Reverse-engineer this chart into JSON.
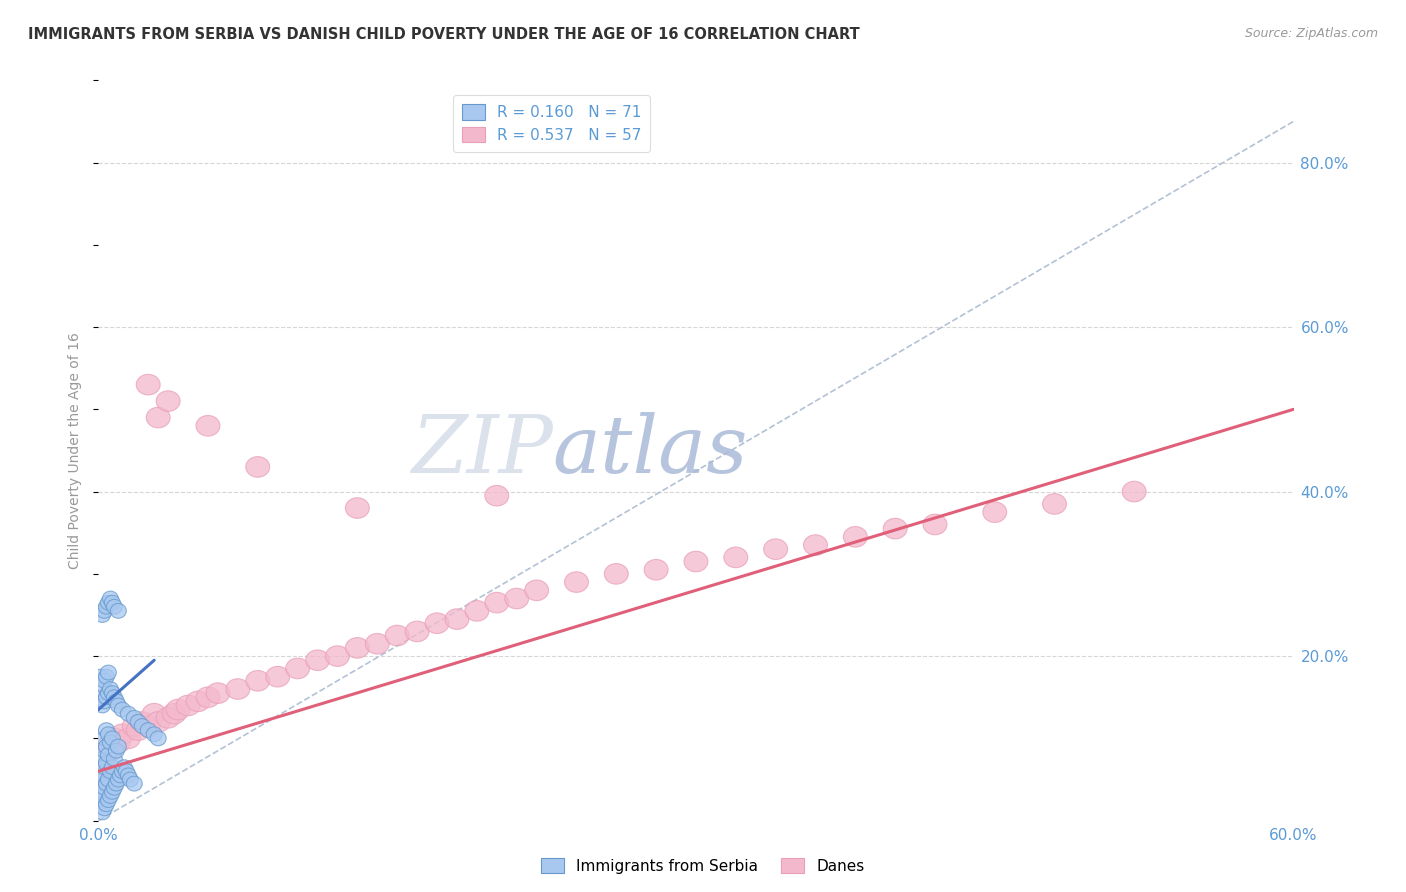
{
  "title": "IMMIGRANTS FROM SERBIA VS DANISH CHILD POVERTY UNDER THE AGE OF 16 CORRELATION CHART",
  "source_text": "Source: ZipAtlas.com",
  "ylabel": "Child Poverty Under the Age of 16",
  "xlim": [
    0.0,
    0.6
  ],
  "ylim": [
    0.0,
    0.9
  ],
  "xticks": [
    0.0,
    0.1,
    0.2,
    0.3,
    0.4,
    0.5,
    0.6
  ],
  "yticks": [
    0.0,
    0.2,
    0.4,
    0.6,
    0.8
  ],
  "xtick_labels": [
    "0.0%",
    "",
    "",
    "",
    "",
    "",
    "60.0%"
  ],
  "ytick_labels": [
    "",
    "20.0%",
    "40.0%",
    "60.0%",
    "80.0%"
  ],
  "axis_color": "#5b9bd5",
  "legend_r1": "R = 0.160",
  "legend_n1": "N = 71",
  "legend_r2": "R = 0.537",
  "legend_n2": "N = 57",
  "serbia_color": "#a8c8f0",
  "danes_color": "#f4b8cc",
  "serbia_line_color": "#4472c4",
  "danes_line_color": "#e0607a",
  "serbia_scatter_x": [
    0.001,
    0.001,
    0.001,
    0.002,
    0.002,
    0.002,
    0.002,
    0.003,
    0.003,
    0.003,
    0.003,
    0.003,
    0.004,
    0.004,
    0.004,
    0.004,
    0.004,
    0.005,
    0.005,
    0.005,
    0.005,
    0.006,
    0.006,
    0.006,
    0.007,
    0.007,
    0.007,
    0.008,
    0.008,
    0.009,
    0.009,
    0.01,
    0.01,
    0.011,
    0.012,
    0.013,
    0.014,
    0.015,
    0.016,
    0.018,
    0.001,
    0.001,
    0.002,
    0.002,
    0.003,
    0.003,
    0.004,
    0.004,
    0.005,
    0.005,
    0.006,
    0.007,
    0.008,
    0.009,
    0.01,
    0.012,
    0.015,
    0.018,
    0.02,
    0.022,
    0.025,
    0.028,
    0.03,
    0.002,
    0.003,
    0.004,
    0.005,
    0.006,
    0.007,
    0.008,
    0.01
  ],
  "serbia_scatter_y": [
    0.02,
    0.035,
    0.05,
    0.01,
    0.03,
    0.055,
    0.075,
    0.015,
    0.04,
    0.065,
    0.085,
    0.1,
    0.02,
    0.045,
    0.07,
    0.09,
    0.11,
    0.025,
    0.05,
    0.08,
    0.105,
    0.03,
    0.06,
    0.095,
    0.035,
    0.065,
    0.1,
    0.04,
    0.075,
    0.045,
    0.085,
    0.05,
    0.09,
    0.055,
    0.06,
    0.065,
    0.06,
    0.055,
    0.05,
    0.045,
    0.15,
    0.175,
    0.14,
    0.165,
    0.145,
    0.17,
    0.15,
    0.175,
    0.155,
    0.18,
    0.16,
    0.155,
    0.15,
    0.145,
    0.14,
    0.135,
    0.13,
    0.125,
    0.12,
    0.115,
    0.11,
    0.105,
    0.1,
    0.25,
    0.255,
    0.26,
    0.265,
    0.27,
    0.265,
    0.26,
    0.255
  ],
  "danes_scatter_x": [
    0.002,
    0.003,
    0.005,
    0.006,
    0.008,
    0.01,
    0.012,
    0.015,
    0.018,
    0.02,
    0.022,
    0.025,
    0.028,
    0.03,
    0.035,
    0.038,
    0.04,
    0.045,
    0.05,
    0.055,
    0.06,
    0.07,
    0.08,
    0.09,
    0.1,
    0.11,
    0.12,
    0.13,
    0.14,
    0.15,
    0.16,
    0.17,
    0.18,
    0.19,
    0.2,
    0.21,
    0.22,
    0.24,
    0.26,
    0.28,
    0.3,
    0.32,
    0.34,
    0.36,
    0.38,
    0.4,
    0.42,
    0.45,
    0.48,
    0.52,
    0.025,
    0.03,
    0.035,
    0.055,
    0.08,
    0.13,
    0.2
  ],
  "danes_scatter_y": [
    0.06,
    0.055,
    0.09,
    0.085,
    0.1,
    0.095,
    0.105,
    0.1,
    0.115,
    0.11,
    0.12,
    0.115,
    0.13,
    0.12,
    0.125,
    0.13,
    0.135,
    0.14,
    0.145,
    0.15,
    0.155,
    0.16,
    0.17,
    0.175,
    0.185,
    0.195,
    0.2,
    0.21,
    0.215,
    0.225,
    0.23,
    0.24,
    0.245,
    0.255,
    0.265,
    0.27,
    0.28,
    0.29,
    0.3,
    0.305,
    0.315,
    0.32,
    0.33,
    0.335,
    0.345,
    0.355,
    0.36,
    0.375,
    0.385,
    0.4,
    0.53,
    0.49,
    0.51,
    0.48,
    0.43,
    0.38,
    0.395
  ],
  "diag_line_x": [
    0.0,
    0.6
  ],
  "diag_line_y": [
    0.0,
    0.85
  ],
  "serbia_trend_x": [
    0.0,
    0.028
  ],
  "serbia_trend_y": [
    0.135,
    0.195
  ],
  "danes_trend_x": [
    0.0,
    0.6
  ],
  "danes_trend_y": [
    0.06,
    0.5
  ]
}
